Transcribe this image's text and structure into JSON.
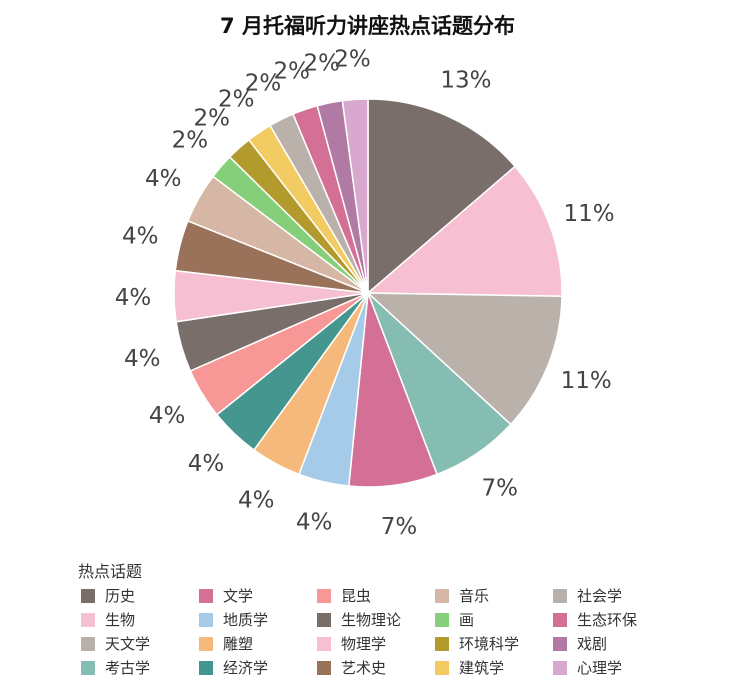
{
  "chart_data": {
    "type": "pie",
    "title": "7 月托福听力讲座热点话题分布",
    "legend_title": "热点话题",
    "legend_position": "bottom",
    "slices": [
      {
        "name": "历史",
        "percent": 13,
        "label": "13%",
        "color": "#7a6e6a"
      },
      {
        "name": "生物",
        "percent": 11,
        "label": "11%",
        "color": "#f6bfd2"
      },
      {
        "name": "天文学",
        "percent": 11,
        "label": "11%",
        "color": "#bab1ab"
      },
      {
        "name": "考古学",
        "percent": 7,
        "label": "7%",
        "color": "#86bdb3"
      },
      {
        "name": "文学",
        "percent": 7,
        "label": "7%",
        "color": "#d46f95"
      },
      {
        "name": "地质学",
        "percent": 4,
        "label": "4%",
        "color": "#a5cbe8"
      },
      {
        "name": "雕塑",
        "percent": 4,
        "label": "4%",
        "color": "#f6b97c"
      },
      {
        "name": "经济学",
        "percent": 4,
        "label": "4%",
        "color": "#44968e"
      },
      {
        "name": "昆虫",
        "percent": 4,
        "label": "4%",
        "color": "#f79896"
      },
      {
        "name": "生物理论",
        "percent": 4,
        "label": "4%",
        "color": "#7a6e6a"
      },
      {
        "name": "物理学",
        "percent": 4,
        "label": "4%",
        "color": "#f6bfd2"
      },
      {
        "name": "艺术史",
        "percent": 4,
        "label": "4%",
        "color": "#9a7259"
      },
      {
        "name": "音乐",
        "percent": 4,
        "label": "4%",
        "color": "#d6b6a5"
      },
      {
        "name": "画",
        "percent": 2,
        "label": "2%",
        "color": "#86cf7a"
      },
      {
        "name": "环境科学",
        "percent": 2,
        "label": "2%",
        "color": "#b29a2d"
      },
      {
        "name": "建筑学",
        "percent": 2,
        "label": "2%",
        "color": "#f2cc62"
      },
      {
        "name": "社会学",
        "percent": 2,
        "label": "2%",
        "color": "#bab1ab"
      },
      {
        "name": "生态环保",
        "percent": 2,
        "label": "2%",
        "color": "#d46f95"
      },
      {
        "name": "戏剧",
        "percent": 2,
        "label": "2%",
        "color": "#b07aa5"
      },
      {
        "name": "心理学",
        "percent": 2,
        "label": "2%",
        "color": "#d9a8cf"
      }
    ],
    "legend": [
      {
        "name": "历史",
        "color": "#7a6e6a"
      },
      {
        "name": "文学",
        "color": "#d46f95"
      },
      {
        "name": "昆虫",
        "color": "#f79896"
      },
      {
        "name": "音乐",
        "color": "#d6b6a5"
      },
      {
        "name": "社会学",
        "color": "#bab1ab"
      },
      {
        "name": "生物",
        "color": "#f6bfd2"
      },
      {
        "name": "地质学",
        "color": "#a5cbe8"
      },
      {
        "name": "生物理论",
        "color": "#7a6e6a"
      },
      {
        "name": "画",
        "color": "#86cf7a"
      },
      {
        "name": "生态环保",
        "color": "#d46f95"
      },
      {
        "name": "天文学",
        "color": "#bab1ab"
      },
      {
        "name": "雕塑",
        "color": "#f6b97c"
      },
      {
        "name": "物理学",
        "color": "#f6bfd2"
      },
      {
        "name": "环境科学",
        "color": "#b29a2d"
      },
      {
        "name": "戏剧",
        "color": "#b07aa5"
      },
      {
        "name": "考古学",
        "color": "#86bdb3"
      },
      {
        "name": "经济学",
        "color": "#44968e"
      },
      {
        "name": "艺术史",
        "color": "#9a7259"
      },
      {
        "name": "建筑学",
        "color": "#f2cc62"
      },
      {
        "name": "心理学",
        "color": "#d9a8cf"
      }
    ]
  }
}
